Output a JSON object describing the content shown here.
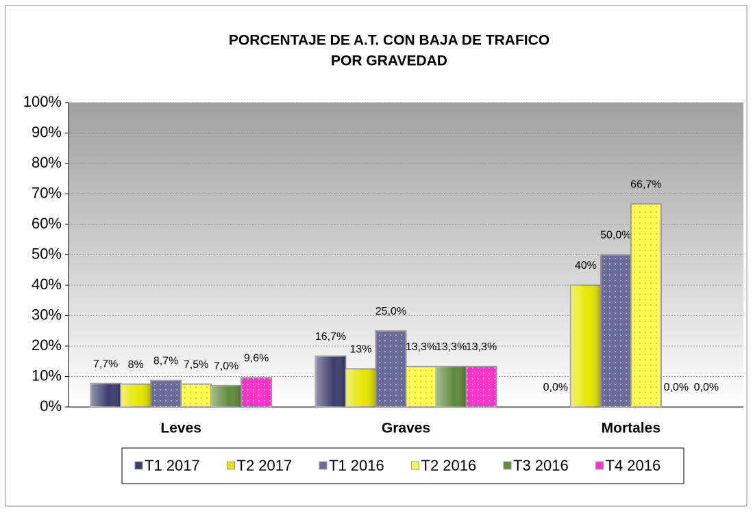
{
  "chart_data": {
    "type": "bar",
    "title": [
      "PORCENTAJE  DE A.T. CON BAJA DE TRAFICO",
      "POR GRAVEDAD"
    ],
    "categories": [
      "Leves",
      "Graves",
      "Mortales"
    ],
    "series": [
      {
        "name": "T1 2017",
        "color": "#3c3c6e",
        "values": [
          7.7,
          16.7,
          0.0
        ],
        "value_labels": [
          "7,7%",
          "16,7%",
          "0,0%"
        ]
      },
      {
        "name": "T2 2017",
        "color": "#e6e600",
        "values": [
          7.5,
          12.5,
          40
        ],
        "value_labels": [
          "8%",
          "13%",
          "40%"
        ]
      },
      {
        "name": "T1 2016",
        "color": "#6b6b9e",
        "values": [
          8.7,
          25.0,
          50.0
        ],
        "value_labels": [
          "8,7%",
          "25,0%",
          "50,0%"
        ]
      },
      {
        "name": "T2 2016",
        "color": "#ffff4d",
        "values": [
          7.5,
          13.3,
          66.7
        ],
        "value_labels": [
          "7,5%",
          "13,3%",
          "66,7%"
        ]
      },
      {
        "name": "T3 2016",
        "color": "#5e8a3a",
        "values": [
          7.0,
          13.3,
          0.0
        ],
        "value_labels": [
          "7,0%",
          "13,3%",
          "0,0%"
        ]
      },
      {
        "name": "T4 2016",
        "color": "#ff33cc",
        "values": [
          9.6,
          13.3,
          0.0
        ],
        "value_labels": [
          "9,6%",
          "13,3%",
          "0,0%"
        ]
      }
    ],
    "ylim": [
      0,
      100
    ],
    "yticks": [
      {
        "value": 0,
        "label": "0%"
      },
      {
        "value": 10,
        "label": "10%"
      },
      {
        "value": 20,
        "label": "20%"
      },
      {
        "value": 30,
        "label": "30%"
      },
      {
        "value": 40,
        "label": "40%"
      },
      {
        "value": 50,
        "label": "50%"
      },
      {
        "value": 60,
        "label": "60%"
      },
      {
        "value": 70,
        "label": "70%"
      },
      {
        "value": 80,
        "label": "80%"
      },
      {
        "value": 90,
        "label": "90%"
      },
      {
        "value": 100,
        "label": "100%"
      }
    ],
    "grid": true
  }
}
